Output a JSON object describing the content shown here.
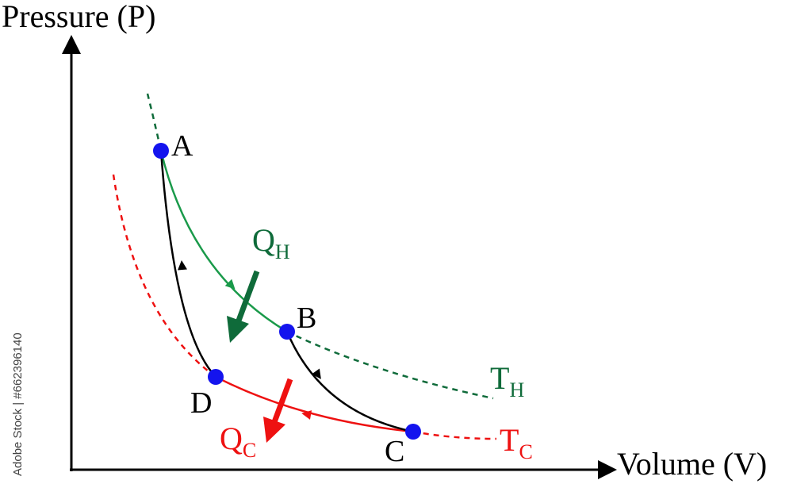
{
  "axes": {
    "y_label": "Pressure (P)",
    "x_label": "Volume (V)"
  },
  "points": [
    {
      "id": "A",
      "label": "A"
    },
    {
      "id": "B",
      "label": "B"
    },
    {
      "id": "C",
      "label": "C"
    },
    {
      "id": "D",
      "label": "D"
    }
  ],
  "heat": {
    "hot": {
      "main": "Q",
      "sub": "H"
    },
    "cold": {
      "main": "Q",
      "sub": "C"
    }
  },
  "isotherms": {
    "hot": {
      "main": "T",
      "sub": "H"
    },
    "cold": {
      "main": "T",
      "sub": "C"
    }
  },
  "credit": "Adobe Stock | #662396140",
  "colors": {
    "hot": "#1a9a4a",
    "hot_dark": "#0f6b3a",
    "cold": "#ee1111",
    "adiabat": "#000000",
    "point": "#1414ee"
  }
}
